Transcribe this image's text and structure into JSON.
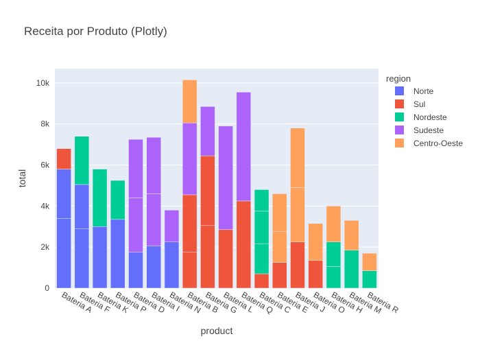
{
  "chart_data": {
    "type": "bar",
    "barmode": "stack",
    "title": "Receita por Produto (Plotly)",
    "xlabel": "product",
    "ylabel": "total",
    "ylim": [
      0,
      10700
    ],
    "yticks": [
      0,
      2000,
      4000,
      6000,
      8000,
      10000
    ],
    "ytick_labels": [
      "0",
      "2k",
      "4k",
      "6k",
      "8k",
      "10k"
    ],
    "grid": true,
    "legend_title": "region",
    "legend_position": "top-right",
    "categories": [
      "Bateria A",
      "Bateria F",
      "Bateria K",
      "Bateria P",
      "Bateria D",
      "Bateria I",
      "Bateria N",
      "Bateria B",
      "Bateria G",
      "Bateria L",
      "Bateria Q",
      "Bateria C",
      "Bateria E",
      "Bateria J",
      "Bateria O",
      "Bateria H",
      "Bateria M",
      "Bateria R"
    ],
    "series": [
      {
        "name": "Norte",
        "color": "#636efa",
        "segments": [
          [
            3400,
            2400
          ],
          [
            2900,
            2150
          ],
          [
            3000
          ],
          [
            3350
          ],
          [
            1750
          ],
          [
            2050
          ],
          [
            2250
          ],
          [],
          [],
          [],
          [],
          [],
          [],
          [],
          [],
          [],
          [],
          []
        ]
      },
      {
        "name": "Sul",
        "color": "#ef553b",
        "segments": [
          [
            1000
          ],
          [],
          [],
          [],
          [],
          [],
          [],
          [
            1750,
            2800
          ],
          [
            3050,
            3400
          ],
          [
            2850
          ],
          [
            4250
          ],
          [
            700
          ],
          [
            1250
          ],
          [
            2250
          ],
          [
            1350
          ],
          [],
          [],
          []
        ]
      },
      {
        "name": "Nordeste",
        "color": "#00cc96",
        "segments": [
          [],
          [
            2350
          ],
          [
            2800
          ],
          [
            1900
          ],
          [],
          [],
          [],
          [],
          [],
          [],
          [],
          [
            1450,
            1600,
            1050
          ],
          [],
          [],
          [],
          [
            1050,
            1200
          ],
          [
            1850
          ],
          [
            850
          ]
        ]
      },
      {
        "name": "Sudeste",
        "color": "#ab63fa",
        "segments": [
          [],
          [],
          [],
          [],
          [
            2650,
            2850
          ],
          [
            2550,
            2750
          ],
          [
            1550
          ],
          [
            3500
          ],
          [
            2400
          ],
          [
            5050
          ],
          [
            5300
          ],
          [],
          [],
          [],
          [],
          [],
          [],
          []
        ]
      },
      {
        "name": "Centro-Oeste",
        "color": "#ffa15a",
        "segments": [
          [],
          [],
          [],
          [],
          [],
          [],
          [],
          [
            2100
          ],
          [],
          [],
          [],
          [],
          [
            1500,
            1850
          ],
          [
            2650,
            2900
          ],
          [
            1800
          ],
          [
            1750
          ],
          [
            1450
          ],
          [
            850
          ]
        ]
      }
    ]
  }
}
